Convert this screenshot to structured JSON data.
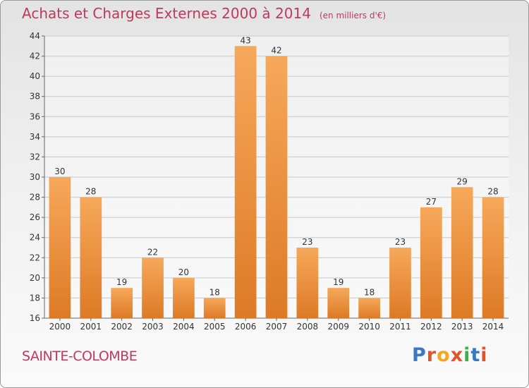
{
  "header": {
    "title": "Achats et Charges Externes 2000 à 2014",
    "unit": "(en milliers d'€)"
  },
  "footer": {
    "commune": "SAINTE-COLOMBE",
    "logo_text": "Proxiti",
    "logo_colors": [
      "#3b78c4",
      "#e0542c",
      "#f4a71c",
      "#e0542c",
      "#3bb04a",
      "#3b78c4",
      "#e0542c"
    ]
  },
  "colors": {
    "bar_light": "#f6a85a",
    "bar_dark": "#dd7a26",
    "title": "#c0395a",
    "grid": "#c8c8c8",
    "axis_text": "#333333"
  },
  "chart_data": {
    "type": "bar",
    "title": "Achats et Charges Externes 2000 à 2014",
    "subtitle": "(en milliers d'€)",
    "xlabel": "",
    "ylabel": "",
    "categories": [
      "2000",
      "2001",
      "2002",
      "2003",
      "2004",
      "2005",
      "2006",
      "2007",
      "2008",
      "2009",
      "2010",
      "2011",
      "2012",
      "2013",
      "2014"
    ],
    "values": [
      30,
      28,
      19,
      22,
      20,
      18,
      43,
      42,
      23,
      19,
      18,
      23,
      27,
      29,
      28
    ],
    "ylim": [
      16,
      44
    ],
    "yticks": [
      16,
      18,
      20,
      22,
      24,
      26,
      28,
      30,
      32,
      34,
      36,
      38,
      40,
      42,
      44
    ],
    "grid": true,
    "legend": "none"
  }
}
